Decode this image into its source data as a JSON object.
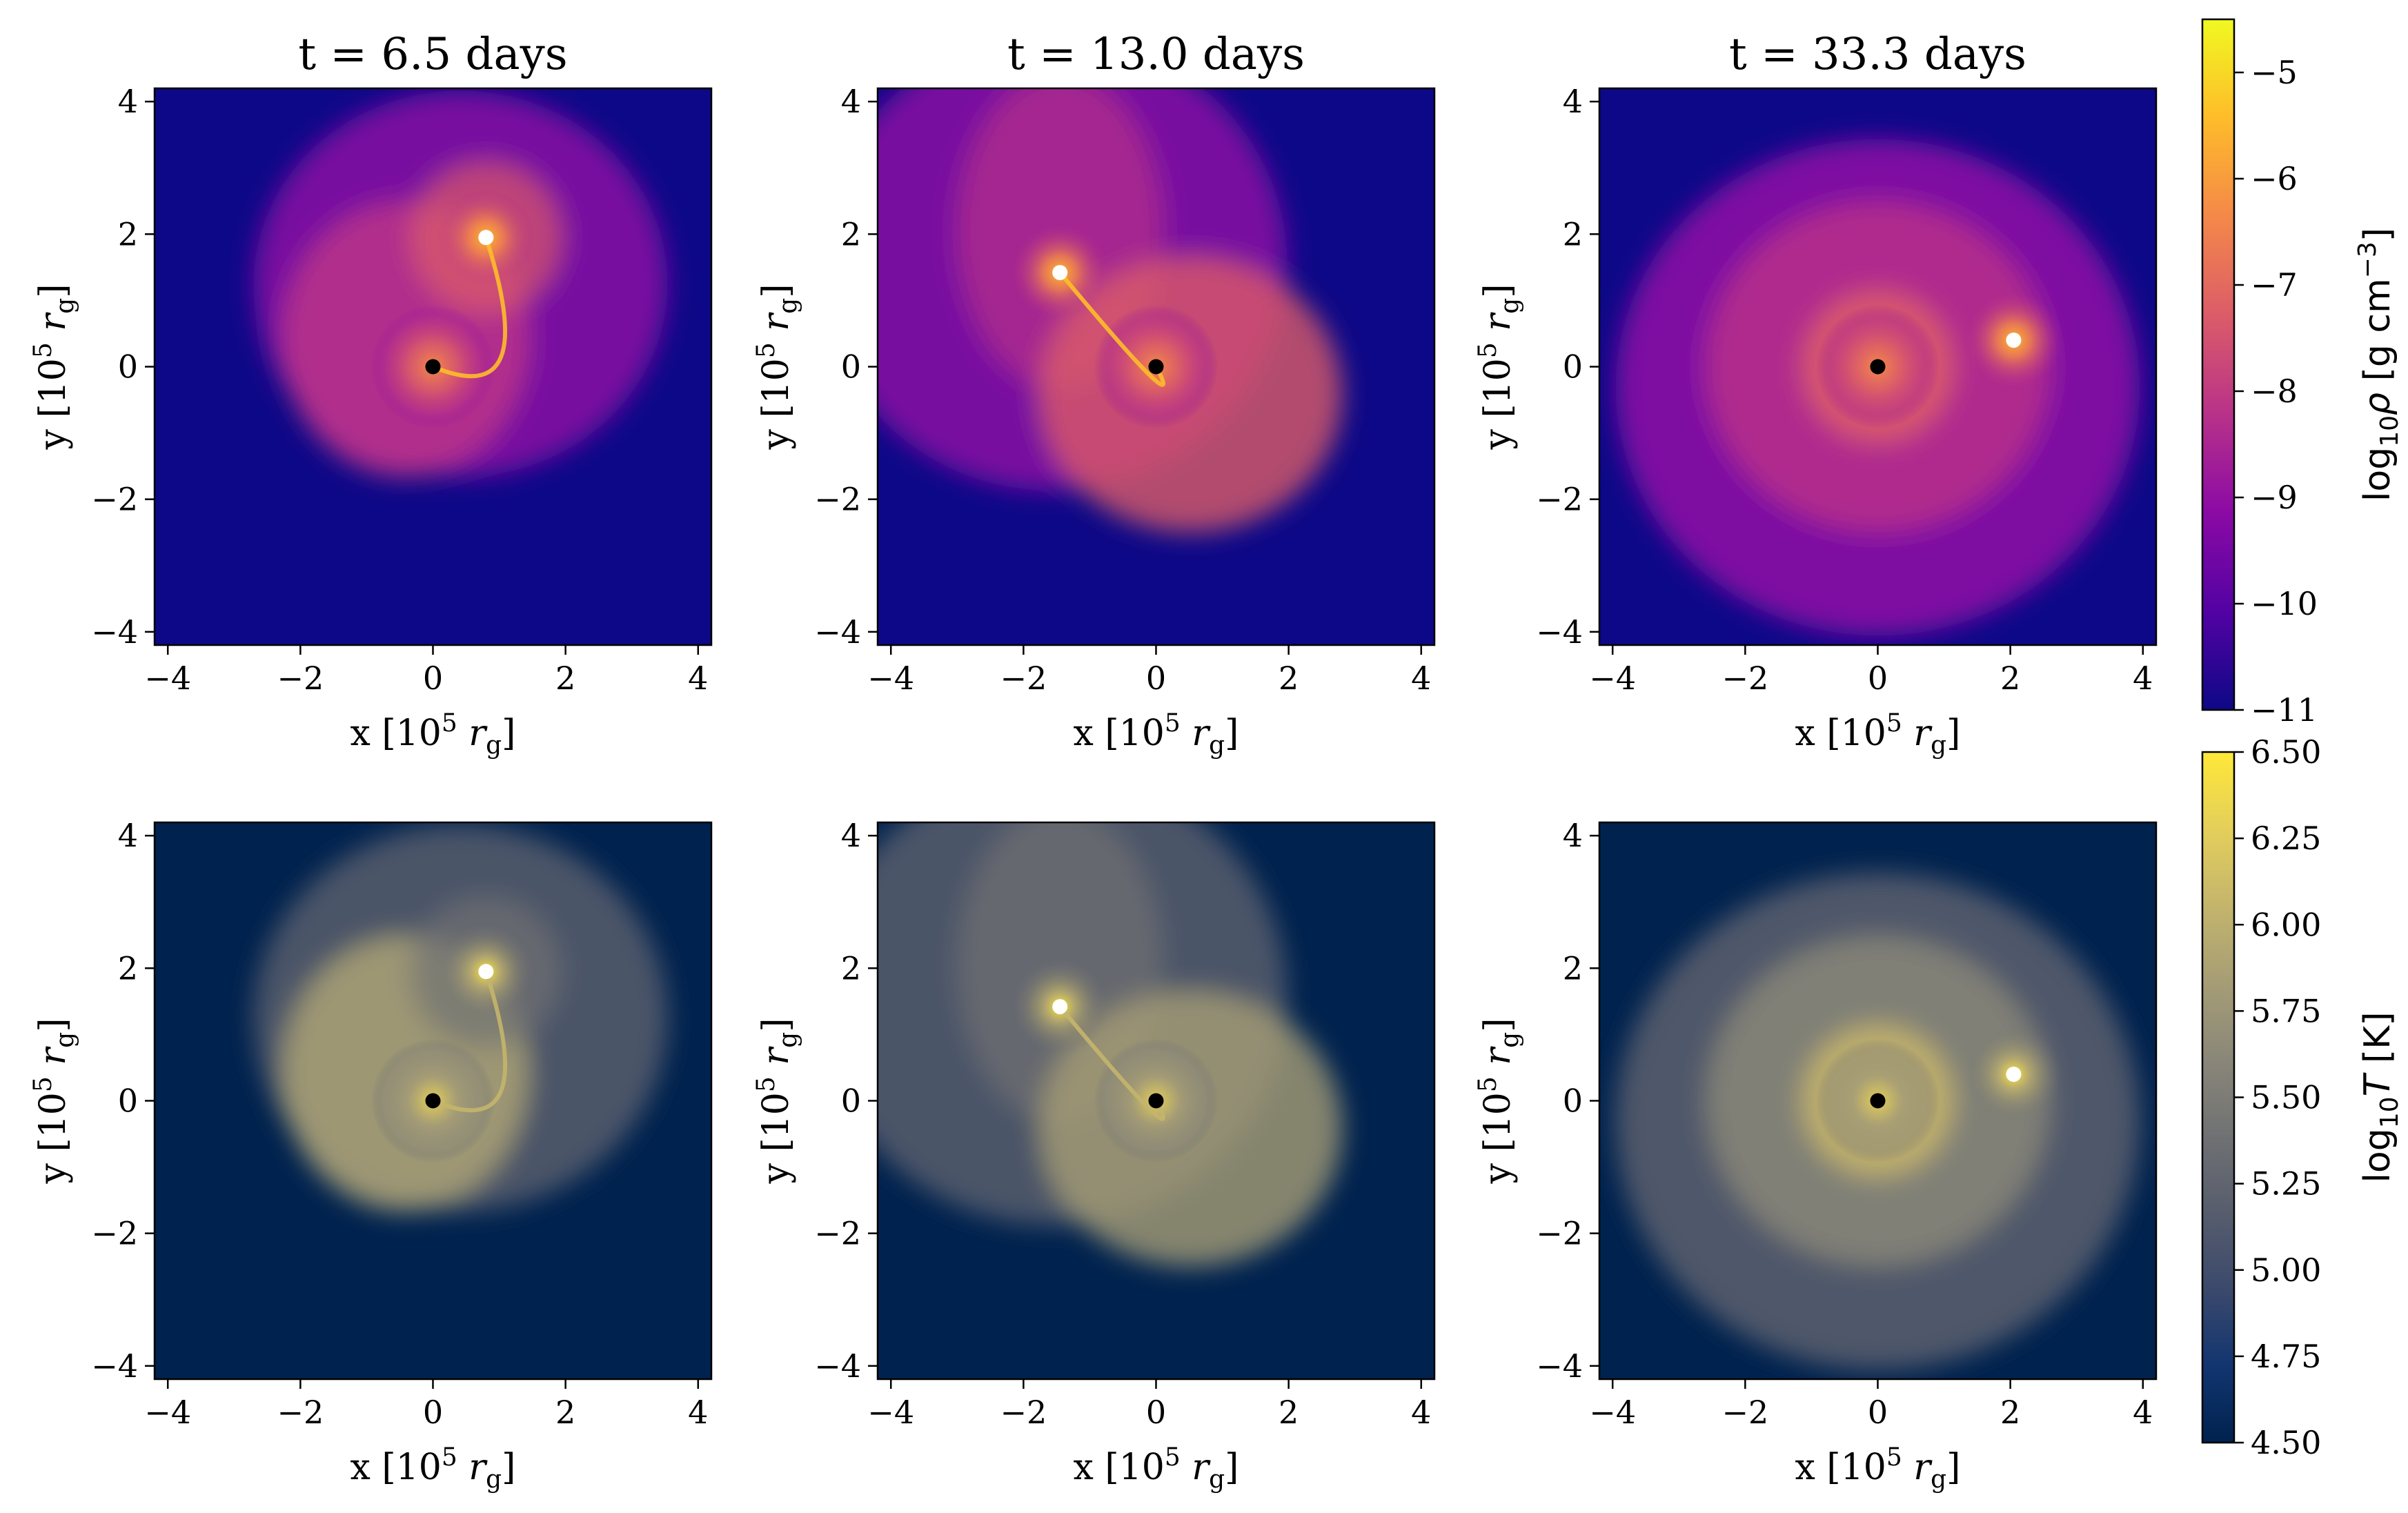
{
  "chart_data": {
    "type": "heatmap",
    "panels": [
      {
        "row": "density",
        "title": "t = 6.5 days",
        "time_days": 6.5,
        "black_hole": {
          "x": 0.0,
          "y": 0.0
        },
        "star": {
          "x": 0.8,
          "y": 1.95
        }
      },
      {
        "row": "density",
        "title": "t = 13.0 days",
        "time_days": 13.0,
        "black_hole": {
          "x": 0.0,
          "y": 0.0
        },
        "star": {
          "x": -1.45,
          "y": 1.42
        }
      },
      {
        "row": "density",
        "title": "t = 33.3 days",
        "time_days": 33.3,
        "black_hole": {
          "x": 0.0,
          "y": 0.0
        },
        "star": {
          "x": 2.05,
          "y": 0.4
        }
      },
      {
        "row": "temperature",
        "title": "",
        "time_days": 6.5,
        "black_hole": {
          "x": 0.0,
          "y": 0.0
        },
        "star": {
          "x": 0.8,
          "y": 1.95
        }
      },
      {
        "row": "temperature",
        "title": "",
        "time_days": 13.0,
        "black_hole": {
          "x": 0.0,
          "y": 0.0
        },
        "star": {
          "x": -1.45,
          "y": 1.42
        }
      },
      {
        "row": "temperature",
        "title": "",
        "time_days": 33.3,
        "black_hole": {
          "x": 0.0,
          "y": 0.0
        },
        "star": {
          "x": 2.05,
          "y": 0.4
        }
      }
    ],
    "x_label": "x  [10",
    "y_label": "y  [10",
    "axis_unit_exp": "5",
    "axis_unit_sym": "r",
    "axis_unit_sub": "g",
    "axis_unit_close": "]",
    "xlim": [
      -4.2,
      4.2
    ],
    "ylim": [
      -4.2,
      4.2
    ],
    "ticks": [
      -4,
      -2,
      0,
      2,
      4
    ],
    "tick_labels": [
      "−4",
      "−2",
      "0",
      "2",
      "4"
    ],
    "colorbars": [
      {
        "name": "density",
        "colormap": "plasma",
        "range": [
          -11,
          -4.5
        ],
        "ticks": [
          -5,
          -6,
          -7,
          -8,
          -9,
          -10,
          -11
        ],
        "tick_labels": [
          "−5",
          "−6",
          "−7",
          "−8",
          "−9",
          "−10",
          "−11"
        ],
        "label_prefix": "log",
        "label_sub": "10",
        "label_var": "ρ",
        "label_unit": " [g cm",
        "label_exp": "−3",
        "label_close": "]"
      },
      {
        "name": "temperature",
        "colormap": "cividis",
        "range": [
          4.5,
          6.5
        ],
        "ticks": [
          6.5,
          6.25,
          6.0,
          5.75,
          5.5,
          5.25,
          5.0,
          4.75,
          4.5
        ],
        "tick_labels": [
          "6.50",
          "6.25",
          "6.00",
          "5.75",
          "5.50",
          "5.25",
          "5.00",
          "4.75",
          "4.50"
        ],
        "label_prefix": "log",
        "label_sub": "10",
        "label_var": "T",
        "label_unit": " [K]",
        "label_exp": "",
        "label_close": ""
      }
    ]
  },
  "colors": {
    "plasma": [
      "#0d0887",
      "#5302a3",
      "#8b0aa5",
      "#b83289",
      "#db5c68",
      "#f48849",
      "#febc2a",
      "#f0f921"
    ],
    "cividis": [
      "#00224e",
      "#123570",
      "#3b496c",
      "#575d6d",
      "#707173",
      "#8a8779",
      "#a69d75",
      "#c4b56c",
      "#e4cf5b",
      "#fee838"
    ],
    "black_hole_marker": "#000000",
    "star_marker": "#ffffff"
  }
}
